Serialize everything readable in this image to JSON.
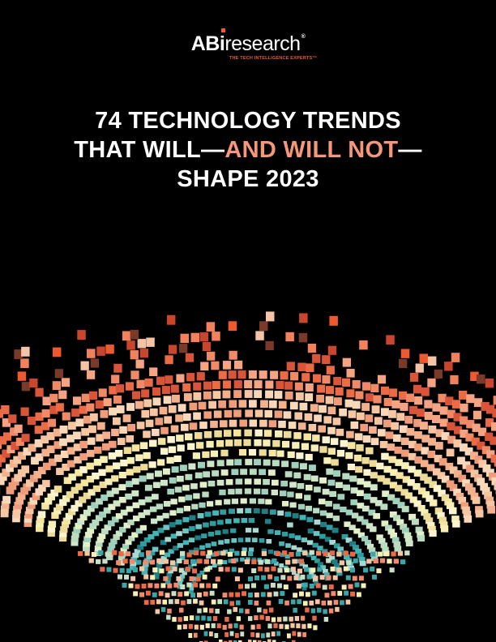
{
  "brand": {
    "logo_ab": "AB",
    "logo_i": "i",
    "logo_research": "research",
    "logo_reg": "®",
    "tagline": "THE TECH INTELLIGENCE EXPERTS™",
    "accent_color": "#f15a29"
  },
  "title": {
    "line1": "74 TECHNOLOGY TRENDS",
    "line2_prefix": "THAT WILL—",
    "line2_accent": "AND WILL NOT",
    "line2_suffix": "—",
    "line3": "SHAPE 2023",
    "accent_color": "#f5987a"
  },
  "artwork": {
    "description_icon": "data-funnel-graphic",
    "palette": [
      "#c7e0c6",
      "#f6f0b8",
      "#f7c9a4",
      "#f28a6b",
      "#ee5a35",
      "#3aa6a8",
      "#6dc0c2",
      "#d4534a"
    ]
  }
}
